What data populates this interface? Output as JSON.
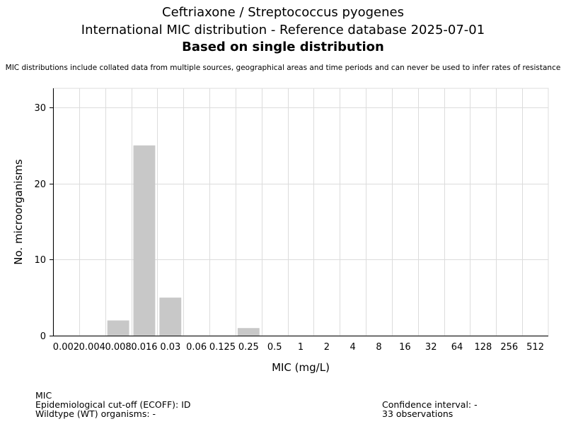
{
  "header": {
    "title_line1": "Ceftriaxone / Streptococcus pyogenes",
    "title_line2": "International MIC distribution - Reference database 2025-07-01",
    "title_line3": "Based on single distribution",
    "disclaimer": "MIC distributions include collated data from multiple sources, geographical areas and time periods and can never be used to infer rates of resistance"
  },
  "chart_data": {
    "type": "bar",
    "title": "Ceftriaxone / Streptococcus pyogenes",
    "xlabel": "MIC (mg/L)",
    "ylabel": "No. microorganisms",
    "categories": [
      "0.002",
      "0.004",
      "0.008",
      "0.016",
      "0.03",
      "0.06",
      "0.125",
      "0.25",
      "0.5",
      "1",
      "2",
      "4",
      "8",
      "16",
      "32",
      "64",
      "128",
      "256",
      "512"
    ],
    "values": [
      0,
      0,
      2,
      25,
      5,
      0,
      0,
      1,
      0,
      0,
      0,
      0,
      0,
      0,
      0,
      0,
      0,
      0,
      0
    ],
    "ylim": [
      0,
      32.5
    ],
    "yticks": [
      0,
      10,
      20,
      30
    ],
    "grid": true,
    "bar_color": "#c8c8c8"
  },
  "footer": {
    "left_line1": "MIC",
    "left_line2": "Epidemiological cut-off (ECOFF): ID",
    "left_line3": "Wildtype (WT) organisms:  -",
    "right_line1": "Confidence interval: -",
    "right_line2": "33 observations"
  }
}
